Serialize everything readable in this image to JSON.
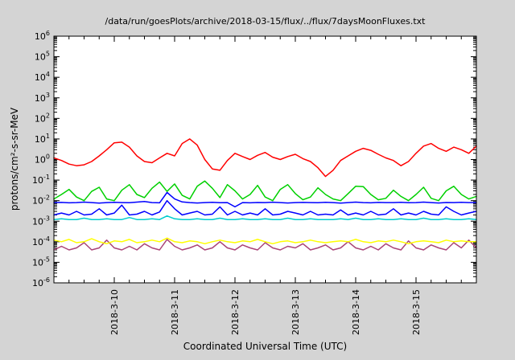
{
  "chart_data": {
    "type": "line",
    "title": "/data/run/goesPlots/archive/2018-03-15/flux/../flux/7daysMoonFluxes.txt",
    "xlabel": "Coordinated Universal Time (UTC)",
    "ylabel": "protons/cm²-s-sr-MeV",
    "grid": false,
    "legend": "none",
    "y_scale": "log",
    "y_log_range": [
      -6,
      6
    ],
    "y_tick_exponents": [
      6,
      5,
      4,
      3,
      2,
      1,
      0,
      -1,
      -2,
      -3,
      -4,
      -5,
      -6
    ],
    "x_range_days": [
      0,
      7
    ],
    "x_span_days": 7,
    "x_ticks": [
      {
        "day": 1,
        "label": "2018-3-10"
      },
      {
        "day": 2,
        "label": "2018-3-11"
      },
      {
        "day": 3,
        "label": "2018-3-12"
      },
      {
        "day": 4,
        "label": "2018-3-13"
      },
      {
        "day": 5,
        "label": "2018-3-14"
      },
      {
        "day": 6,
        "label": "2018-3-15"
      }
    ],
    "series": [
      {
        "name": "purple",
        "color": "#aa4477",
        "values": [
          4e-05,
          6e-05,
          4e-05,
          5e-05,
          9e-05,
          4e-05,
          5e-05,
          0.00012,
          5e-05,
          4e-05,
          6e-05,
          4e-05,
          8e-05,
          5e-05,
          4e-05,
          0.00013,
          6e-05,
          4e-05,
          5e-05,
          7e-05,
          4e-05,
          5e-05,
          0.0001,
          5e-05,
          4e-05,
          7e-05,
          5e-05,
          4e-05,
          9e-05,
          5e-05,
          4e-05,
          6e-05,
          5e-05,
          8e-05,
          4e-05,
          5e-05,
          7e-05,
          4e-05,
          5e-05,
          0.0001,
          5e-05,
          4e-05,
          6e-05,
          4e-05,
          8e-05,
          5e-05,
          4e-05,
          0.00011,
          5e-05,
          4e-05,
          7e-05,
          5e-05,
          4e-05,
          9e-05,
          5e-05,
          0.00012,
          5e-05
        ]
      },
      {
        "name": "yellow",
        "color": "#ffff00",
        "values": [
          0.00012,
          0.0001,
          0.00013,
          9e-05,
          0.0001,
          0.00014,
          0.0001,
          8e-05,
          0.00011,
          0.0001,
          0.00013,
          9e-05,
          0.0001,
          0.00012,
          0.0001,
          0.00015,
          0.0001,
          9e-05,
          0.00011,
          0.0001,
          8e-05,
          0.0001,
          0.00012,
          0.0001,
          9e-05,
          0.00011,
          0.0001,
          0.00013,
          0.0001,
          8e-05,
          0.0001,
          0.00011,
          9e-05,
          0.0001,
          0.00012,
          0.0001,
          9e-05,
          0.0001,
          0.00011,
          0.0001,
          0.00013,
          0.0001,
          9e-05,
          0.00011,
          0.0001,
          0.00012,
          0.0001,
          8e-05,
          0.0001,
          0.00011,
          0.0001,
          9e-05,
          0.00012,
          0.0001,
          0.00011,
          0.0001,
          0.0001
        ]
      },
      {
        "name": "cyan",
        "color": "#00cdcd",
        "values": [
          0.0012,
          0.0013,
          0.0012,
          0.0012,
          0.0014,
          0.0012,
          0.0012,
          0.0013,
          0.0012,
          0.0012,
          0.0015,
          0.0012,
          0.0012,
          0.0013,
          0.0012,
          0.0018,
          0.0013,
          0.0012,
          0.0012,
          0.0013,
          0.0012,
          0.0012,
          0.0014,
          0.0012,
          0.0012,
          0.0013,
          0.0012,
          0.0012,
          0.0013,
          0.0012,
          0.0012,
          0.0014,
          0.0012,
          0.0012,
          0.0013,
          0.0012,
          0.0012,
          0.0012,
          0.0013,
          0.0012,
          0.0014,
          0.0012,
          0.0012,
          0.0013,
          0.0012,
          0.0012,
          0.0013,
          0.0012,
          0.0012,
          0.0014,
          0.0012,
          0.0012,
          0.0013,
          0.0012,
          0.0012,
          0.0013,
          0.0012
        ]
      },
      {
        "name": "blue-lower",
        "color": "#0000ff",
        "values": [
          0.002,
          0.0025,
          0.002,
          0.003,
          0.002,
          0.0022,
          0.004,
          0.002,
          0.0025,
          0.006,
          0.002,
          0.0022,
          0.003,
          0.002,
          0.0028,
          0.01,
          0.004,
          0.002,
          0.0025,
          0.003,
          0.002,
          0.0022,
          0.005,
          0.002,
          0.003,
          0.002,
          0.0025,
          0.002,
          0.004,
          0.002,
          0.0022,
          0.003,
          0.0025,
          0.002,
          0.003,
          0.002,
          0.0022,
          0.002,
          0.0035,
          0.002,
          0.0025,
          0.002,
          0.003,
          0.002,
          0.0022,
          0.004,
          0.002,
          0.0025,
          0.002,
          0.003,
          0.0022,
          0.002,
          0.005,
          0.003,
          0.002,
          0.0025,
          0.003
        ]
      },
      {
        "name": "blue-upper",
        "color": "#0000ff",
        "values": [
          0.008,
          0.0082,
          0.0078,
          0.008,
          0.0085,
          0.008,
          0.0076,
          0.008,
          0.0083,
          0.008,
          0.0079,
          0.0085,
          0.009,
          0.008,
          0.0078,
          0.025,
          0.012,
          0.0086,
          0.008,
          0.0077,
          0.008,
          0.0083,
          0.0079,
          0.008,
          0.005,
          0.008,
          0.0078,
          0.0081,
          0.008,
          0.0084,
          0.008,
          0.0077,
          0.008,
          0.0082,
          0.008,
          0.0079,
          0.0083,
          0.008,
          0.0076,
          0.008,
          0.0085,
          0.008,
          0.0078,
          0.0082,
          0.008,
          0.008,
          0.0083,
          0.0079,
          0.008,
          0.0085,
          0.008,
          0.0077,
          0.0081,
          0.008,
          0.0083,
          0.008,
          0.008
        ]
      },
      {
        "name": "green",
        "color": "#00d000",
        "values": [
          0.012,
          0.02,
          0.035,
          0.015,
          0.01,
          0.028,
          0.045,
          0.012,
          0.01,
          0.032,
          0.06,
          0.02,
          0.014,
          0.04,
          0.08,
          0.028,
          0.065,
          0.018,
          0.012,
          0.05,
          0.09,
          0.04,
          0.014,
          0.06,
          0.03,
          0.012,
          0.02,
          0.055,
          0.015,
          0.01,
          0.035,
          0.06,
          0.022,
          0.011,
          0.015,
          0.042,
          0.02,
          0.012,
          0.01,
          0.022,
          0.05,
          0.048,
          0.02,
          0.011,
          0.013,
          0.032,
          0.016,
          0.01,
          0.02,
          0.045,
          0.013,
          0.01,
          0.03,
          0.05,
          0.02,
          0.012,
          0.016
        ]
      },
      {
        "name": "red",
        "color": "#ff0000",
        "values": [
          1.2,
          0.9,
          0.6,
          0.5,
          0.55,
          0.8,
          1.5,
          3.0,
          6.5,
          7.0,
          4.0,
          1.5,
          0.8,
          0.7,
          1.2,
          2.0,
          1.5,
          6.0,
          10.0,
          5.0,
          1.0,
          0.35,
          0.3,
          0.9,
          2.0,
          1.4,
          1.0,
          1.6,
          2.2,
          1.3,
          1.0,
          1.4,
          1.8,
          1.1,
          0.8,
          0.4,
          0.15,
          0.3,
          0.9,
          1.5,
          2.5,
          3.5,
          2.8,
          1.8,
          1.2,
          0.9,
          0.5,
          0.8,
          2.0,
          4.5,
          6.0,
          3.5,
          2.5,
          4.0,
          3.0,
          2.0,
          4.5
        ]
      }
    ],
    "colors": {
      "page_background": "#d4d4d4",
      "plot_background": "#ffffff",
      "axis": "#000000"
    }
  }
}
